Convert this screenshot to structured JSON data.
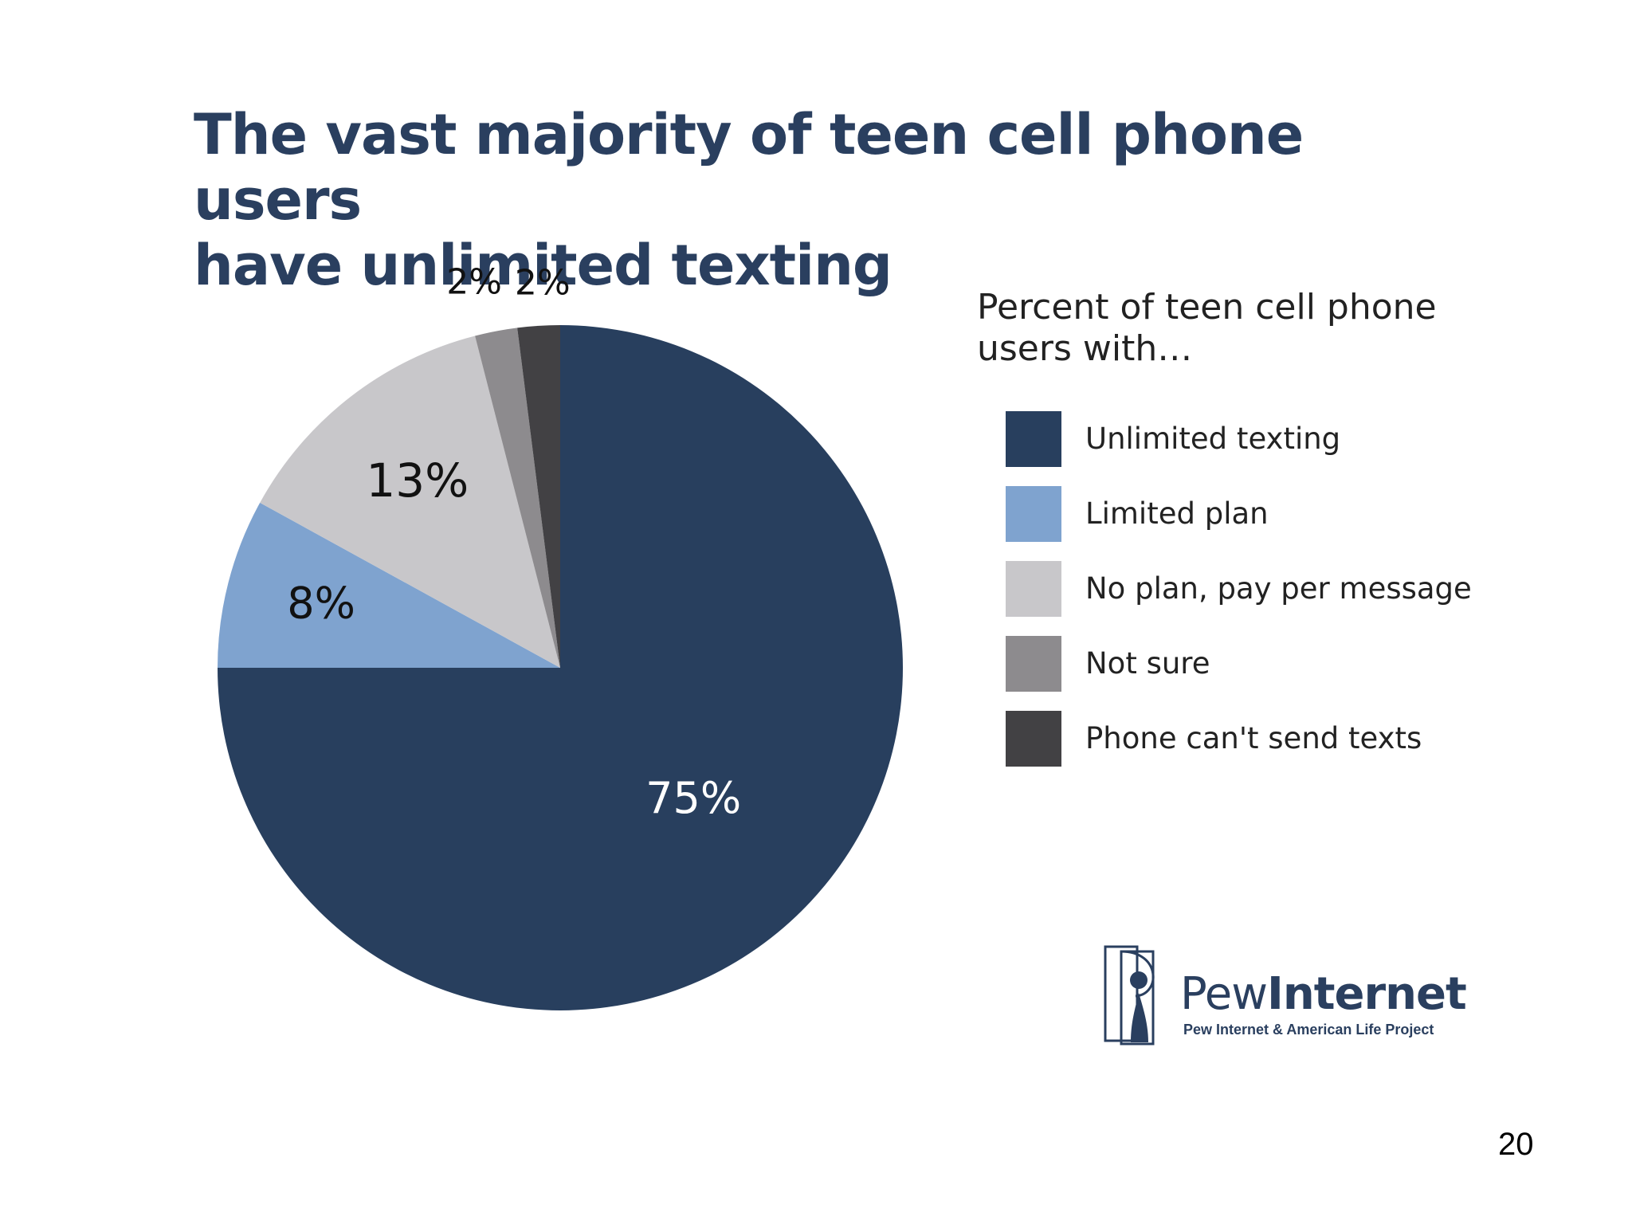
{
  "chart_data": {
    "type": "pie",
    "title": [
      "The vast majority of teen cell phone users",
      "have unlimited texting"
    ],
    "legend_title": "Percent of teen cell phone users with…",
    "legend_placement": "right",
    "slices": [
      {
        "label": "Unlimited texting",
        "value": 75,
        "display": "75%",
        "color": "#283f5e"
      },
      {
        "label": "Limited plan",
        "value": 8,
        "display": "8%",
        "color": "#7fa3cf"
      },
      {
        "label": "No plan, pay per message",
        "value": 13,
        "display": "13%",
        "color": "#c8c7ca"
      },
      {
        "label": "Not sure",
        "value": 2,
        "display": "2%",
        "color": "#8d8b8e"
      },
      {
        "label": "Phone can't send texts",
        "value": 2,
        "display": "2%",
        "color": "#424144"
      }
    ]
  },
  "logo": {
    "brand_light": "Pew",
    "brand_bold": "Internet",
    "tagline": "Pew Internet & American Life Project"
  },
  "page_number": "20"
}
